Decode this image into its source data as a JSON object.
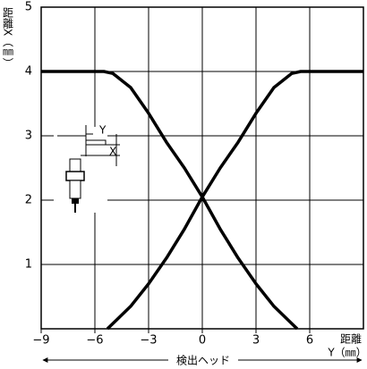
{
  "chart_data": {
    "type": "line",
    "y_label": "距離X（㎜）",
    "x_label": [
      "距離",
      "Y（㎜）"
    ],
    "x_caption": "検出ヘッド",
    "annotations": [
      "Y",
      "X"
    ],
    "xlim": [
      -9,
      9
    ],
    "ylim": [
      0,
      5
    ],
    "xticks": [
      {
        "value": -9,
        "label": "−9"
      },
      {
        "value": -6,
        "label": "−6"
      },
      {
        "value": -3,
        "label": "−3"
      },
      0,
      3,
      6
    ],
    "yticks": [
      1,
      2,
      3,
      4,
      5
    ],
    "grid": true,
    "series": [
      {
        "color": "#000000",
        "x": [
          -9,
          -5.5,
          -5,
          -4,
          -3,
          -2,
          -1,
          0,
          1,
          2,
          3,
          4,
          5,
          5.3
        ],
        "values": [
          4,
          4,
          3.97,
          3.75,
          3.35,
          2.9,
          2.5,
          2.05,
          1.55,
          1.1,
          0.7,
          0.35,
          0.08,
          0
        ]
      },
      {
        "color": "#000000",
        "x": [
          -5.3,
          -5,
          -4,
          -3,
          -2,
          -1,
          0,
          1,
          2,
          3,
          4,
          5,
          5.5,
          9
        ],
        "values": [
          0,
          0.08,
          0.35,
          0.7,
          1.1,
          1.55,
          2.05,
          2.5,
          2.9,
          3.35,
          3.75,
          3.97,
          4,
          4
        ]
      }
    ]
  }
}
